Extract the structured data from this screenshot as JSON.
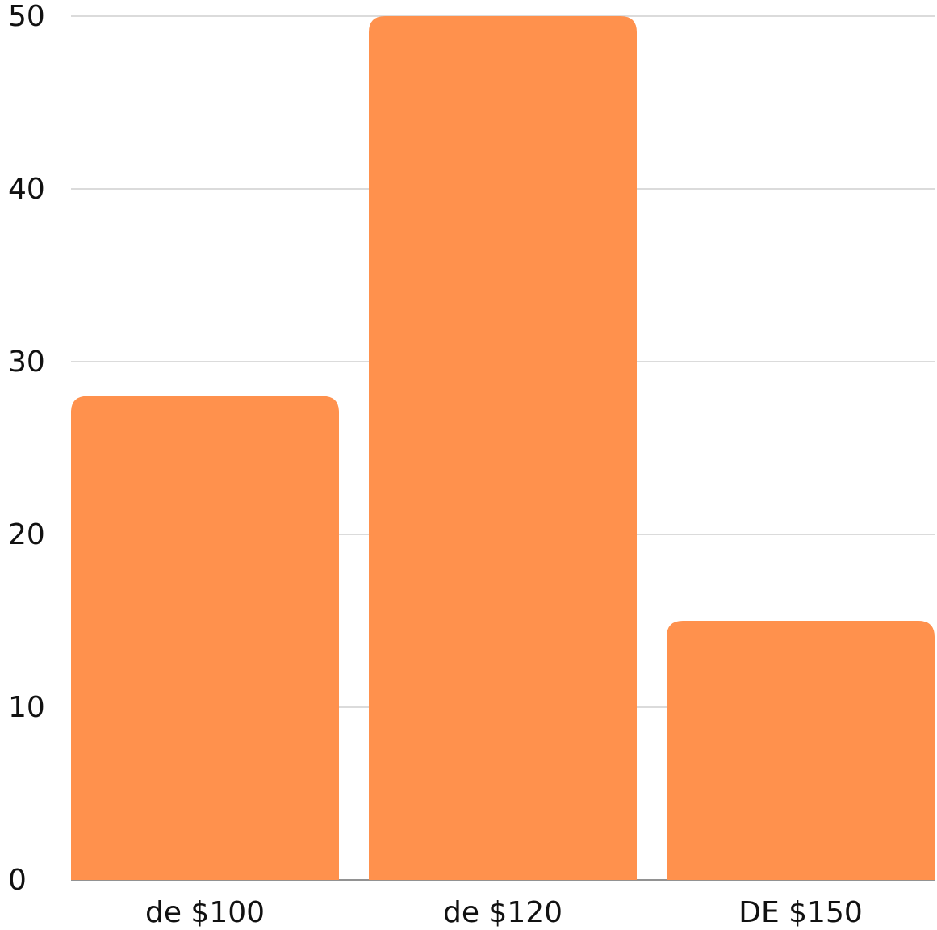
{
  "chart_data": {
    "type": "bar",
    "categories": [
      "de $100",
      "de $120",
      "DE $150"
    ],
    "values": [
      28,
      50,
      15
    ],
    "color": "#ff914d",
    "ylim": [
      0,
      50
    ],
    "yticks": [
      0,
      10,
      20,
      30,
      40,
      50
    ],
    "grid": true
  }
}
